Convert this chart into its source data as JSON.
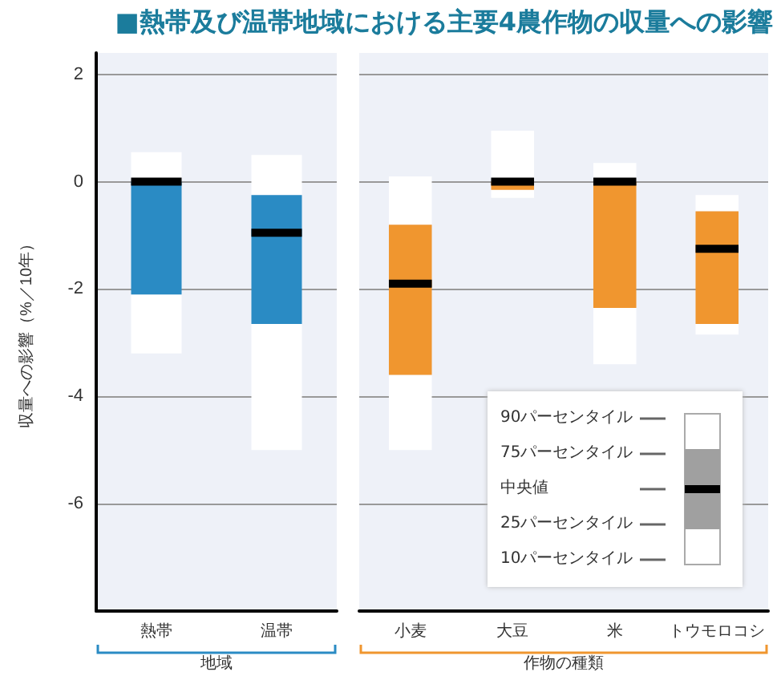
{
  "chart_data": [
    {
      "type": "box",
      "title": "■熱帯及び温帯地域における主要4農作物の収量への影響",
      "ylabel": "収量への影響（%／10年）",
      "xlabel": "地域",
      "categories": [
        "熱帯",
        "温帯"
      ],
      "color": "#2a8bc4",
      "boxes": [
        {
          "low": -3.2,
          "q1": -2.1,
          "median": 0,
          "q3": 0,
          "high": 0.55
        },
        {
          "low": -5.0,
          "q1": -2.65,
          "median": -0.95,
          "q3": -0.25,
          "high": 0.5
        }
      ],
      "ylim": [
        -8,
        2.4
      ],
      "yticks": [
        -6,
        -4,
        -2,
        0,
        2
      ],
      "grid": "y"
    },
    {
      "type": "box",
      "xlabel": "作物の種類",
      "categories": [
        "小麦",
        "大豆",
        "米",
        "トウモロコシ"
      ],
      "color": "#f0962f",
      "boxes": [
        {
          "low": -5.0,
          "q1": -3.6,
          "median": -1.9,
          "q3": -0.8,
          "high": 0.1
        },
        {
          "low": -0.3,
          "q1": -0.15,
          "median": 0,
          "q3": 0,
          "high": 0.95
        },
        {
          "low": -3.4,
          "q1": -2.35,
          "median": 0,
          "q3": 0,
          "high": 0.35
        },
        {
          "low": -2.85,
          "q1": -2.65,
          "median": -1.25,
          "q3": -0.55,
          "high": -0.25
        }
      ],
      "ylim": [
        -8,
        2.4
      ],
      "yticks": [
        -6,
        -4,
        -2,
        0,
        2
      ],
      "grid": "y",
      "tick_labels": "x",
      "annotations": [
        "90パーセンタイル",
        "75パーセンタイル",
        "中央値",
        "25パーセンタイル",
        "10パーセンタイル"
      ]
    }
  ]
}
